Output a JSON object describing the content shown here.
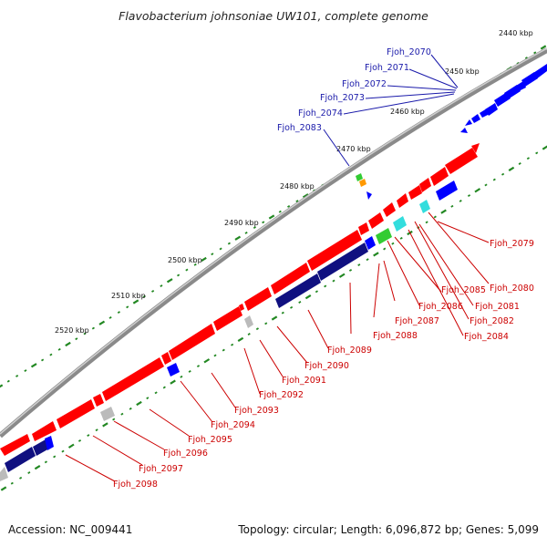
{
  "title": "Flavobacterium johnsoniae UW101, complete genome",
  "footer": {
    "accession": "Accession: NC_009441",
    "summary": "Topology: circular; Length: 6,096,872 bp; Genes: 5,099"
  },
  "colors": {
    "backbone": "#8a8a8a",
    "forward_gene": "#ff0000",
    "reverse_gene": "#0000ff",
    "dark_navy": "#101080",
    "cyan": "#33dddd",
    "green": "#33cc33",
    "orange": "#ff9900",
    "grey": "#bbbbbb",
    "tick_green": "#228822",
    "label_blue": "#1a1aaa",
    "label_red": "#cc0000"
  },
  "scale_ticks": [
    "2440 kbp",
    "2450 kbp",
    "2460 kbp",
    "2470 kbp",
    "2480 kbp",
    "2490 kbp",
    "2500 kbp",
    "2510 kbp",
    "2520 kbp"
  ],
  "labels_blue": [
    "Fjoh_2070",
    "Fjoh_2071",
    "Fjoh_2072",
    "Fjoh_2073",
    "Fjoh_2074",
    "Fjoh_2083"
  ],
  "labels_red": [
    "Fjoh_2079",
    "Fjoh_2080",
    "Fjoh_2081",
    "Fjoh_2082",
    "Fjoh_2084",
    "Fjoh_2085",
    "Fjoh_2086",
    "Fjoh_2087",
    "Fjoh_2088",
    "Fjoh_2089",
    "Fjoh_2090",
    "Fjoh_2091",
    "Fjoh_2092",
    "Fjoh_2093",
    "Fjoh_2094",
    "Fjoh_2095",
    "Fjoh_2096",
    "Fjoh_2097",
    "Fjoh_2098"
  ]
}
